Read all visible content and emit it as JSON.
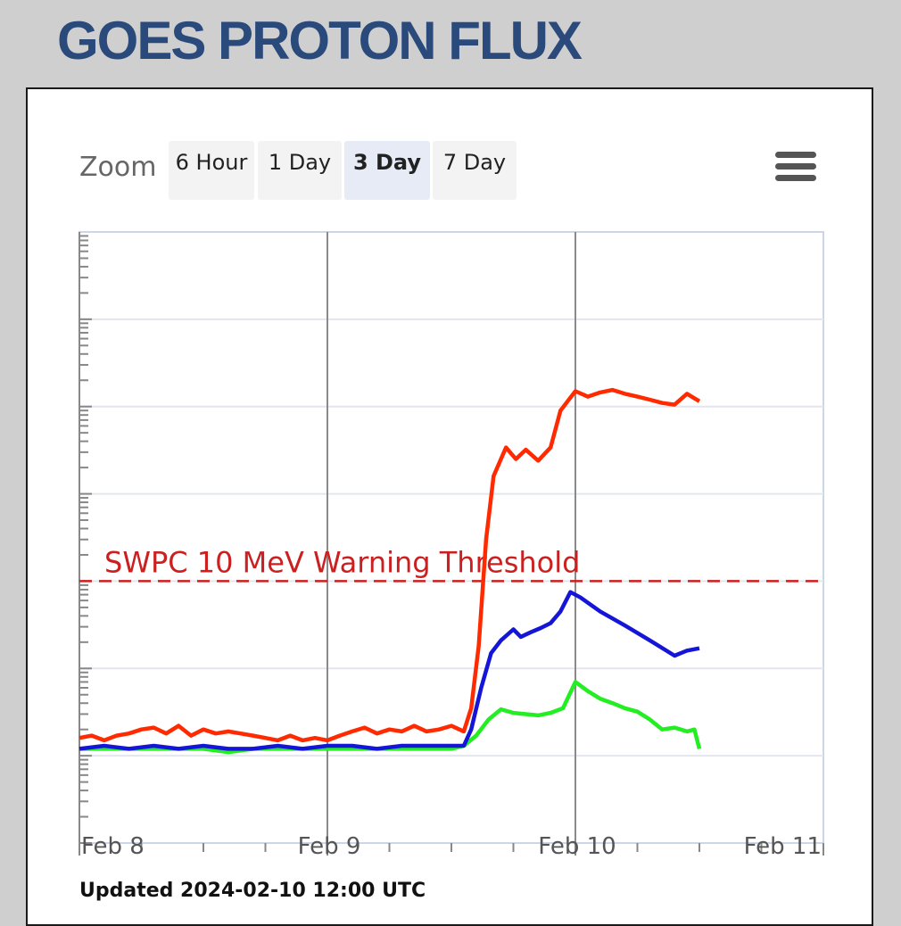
{
  "title": "GOES PROTON FLUX",
  "zoom": {
    "label": "Zoom",
    "buttons": [
      "6 Hour",
      "1 Day",
      "3 Day",
      "7 Day"
    ],
    "active": "3 Day"
  },
  "updated": "Updated 2024-02-10 12:00 UTC",
  "colors": {
    "title": "#2a4a7c",
    "threshold": "#cc1f1f"
  },
  "chart_data": {
    "type": "line",
    "title": "",
    "xlabel": "",
    "ylabel": "",
    "yscale": "log",
    "x_ticks": [
      "Feb 8",
      "Feb 9",
      "Feb 10",
      "Feb 11"
    ],
    "xlim_days": [
      0,
      3
    ],
    "ylim": [
      0.01,
      100000
    ],
    "grid": true,
    "threshold": {
      "value": 10,
      "label": "SWPC 10 MeV Warning Threshold",
      "color": "#cc1f1f"
    },
    "series": [
      {
        "color": "#ff2a00",
        "x": [
          0,
          0.05,
          0.1,
          0.15,
          0.2,
          0.25,
          0.3,
          0.35,
          0.4,
          0.45,
          0.5,
          0.55,
          0.6,
          0.65,
          0.7,
          0.75,
          0.8,
          0.85,
          0.9,
          0.95,
          1.0,
          1.05,
          1.1,
          1.15,
          1.2,
          1.25,
          1.3,
          1.35,
          1.4,
          1.45,
          1.5,
          1.55,
          1.58,
          1.61,
          1.64,
          1.67,
          1.72,
          1.76,
          1.8,
          1.85,
          1.9,
          1.94,
          2.0,
          2.05,
          2.1,
          2.15,
          2.2,
          2.25,
          2.3,
          2.35,
          2.4,
          2.45,
          2.5
        ],
        "y": [
          0.16,
          0.17,
          0.15,
          0.17,
          0.18,
          0.2,
          0.21,
          0.18,
          0.22,
          0.17,
          0.2,
          0.18,
          0.19,
          0.18,
          0.17,
          0.16,
          0.15,
          0.17,
          0.15,
          0.16,
          0.15,
          0.17,
          0.19,
          0.21,
          0.18,
          0.2,
          0.19,
          0.22,
          0.19,
          0.2,
          0.22,
          0.19,
          0.35,
          1.8,
          30,
          160,
          340,
          250,
          320,
          240,
          340,
          900,
          1500,
          1300,
          1450,
          1550,
          1400,
          1300,
          1200,
          1100,
          1050,
          1400,
          1150
        ]
      },
      {
        "color": "#1515d8",
        "x": [
          0,
          0.1,
          0.2,
          0.3,
          0.4,
          0.5,
          0.6,
          0.7,
          0.8,
          0.9,
          1.0,
          1.1,
          1.2,
          1.3,
          1.4,
          1.5,
          1.55,
          1.58,
          1.62,
          1.66,
          1.7,
          1.75,
          1.78,
          1.82,
          1.86,
          1.9,
          1.94,
          1.98,
          2.02,
          2.1,
          2.2,
          2.3,
          2.4,
          2.45,
          2.5
        ],
        "y": [
          0.12,
          0.13,
          0.12,
          0.13,
          0.12,
          0.13,
          0.12,
          0.12,
          0.13,
          0.12,
          0.13,
          0.13,
          0.12,
          0.13,
          0.13,
          0.13,
          0.13,
          0.2,
          0.6,
          1.5,
          2.1,
          2.8,
          2.3,
          2.6,
          2.9,
          3.3,
          4.5,
          7.5,
          6.5,
          4.5,
          3.1,
          2.1,
          1.4,
          1.6,
          1.7
        ]
      },
      {
        "color": "#22ee22",
        "x": [
          0,
          0.1,
          0.2,
          0.3,
          0.4,
          0.5,
          0.6,
          0.7,
          0.8,
          0.9,
          1.0,
          1.1,
          1.2,
          1.3,
          1.4,
          1.5,
          1.55,
          1.6,
          1.65,
          1.7,
          1.75,
          1.8,
          1.85,
          1.9,
          1.95,
          2.0,
          2.05,
          2.1,
          2.15,
          2.2,
          2.25,
          2.3,
          2.35,
          2.4,
          2.45,
          2.48,
          2.5
        ],
        "y": [
          0.12,
          0.12,
          0.12,
          0.12,
          0.12,
          0.12,
          0.11,
          0.12,
          0.12,
          0.12,
          0.12,
          0.12,
          0.12,
          0.12,
          0.12,
          0.12,
          0.13,
          0.17,
          0.26,
          0.34,
          0.31,
          0.3,
          0.29,
          0.31,
          0.35,
          0.7,
          0.55,
          0.45,
          0.4,
          0.35,
          0.32,
          0.26,
          0.2,
          0.21,
          0.19,
          0.2,
          0.12
        ]
      }
    ]
  }
}
